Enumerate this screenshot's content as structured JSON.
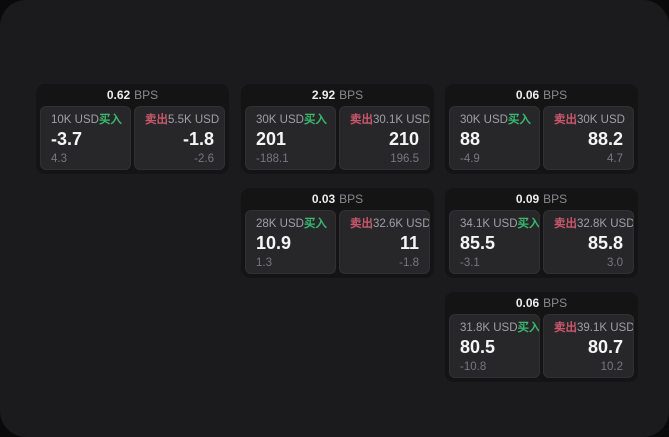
{
  "labels": {
    "buy": "买入",
    "sell": "卖出",
    "bps_suffix": "BPS"
  },
  "colors": {
    "buy": "#39b96e",
    "sell": "#c9576b",
    "surface": "#1b1b1d",
    "card": "#141415",
    "panel": "#27272a"
  },
  "cards": [
    {
      "bps": "0.62",
      "buy": {
        "size": "10K USD",
        "price": "-3.7",
        "delta": "4.3"
      },
      "sell": {
        "size": "5.5K USD",
        "price": "-1.8",
        "delta": "-2.6"
      }
    },
    {
      "bps": "2.92",
      "buy": {
        "size": "30K USD",
        "price": "201",
        "delta": "-188.1"
      },
      "sell": {
        "size": "30.1K USD",
        "price": "210",
        "delta": "196.5"
      }
    },
    {
      "bps": "0.06",
      "buy": {
        "size": "30K USD",
        "price": "88",
        "delta": "-4.9"
      },
      "sell": {
        "size": "30K USD",
        "price": "88.2",
        "delta": "4.7"
      }
    },
    {
      "bps": "0.03",
      "buy": {
        "size": "28K USD",
        "price": "10.9",
        "delta": "1.3"
      },
      "sell": {
        "size": "32.6K USD",
        "price": "11",
        "delta": "-1.8"
      }
    },
    {
      "bps": "0.09",
      "buy": {
        "size": "34.1K USD",
        "price": "85.5",
        "delta": "-3.1"
      },
      "sell": {
        "size": "32.8K USD",
        "price": "85.8",
        "delta": "3.0"
      }
    },
    {
      "bps": "0.06",
      "buy": {
        "size": "31.8K USD",
        "price": "80.5",
        "delta": "-10.8"
      },
      "sell": {
        "size": "39.1K USD",
        "price": "80.7",
        "delta": "10.2"
      }
    }
  ]
}
